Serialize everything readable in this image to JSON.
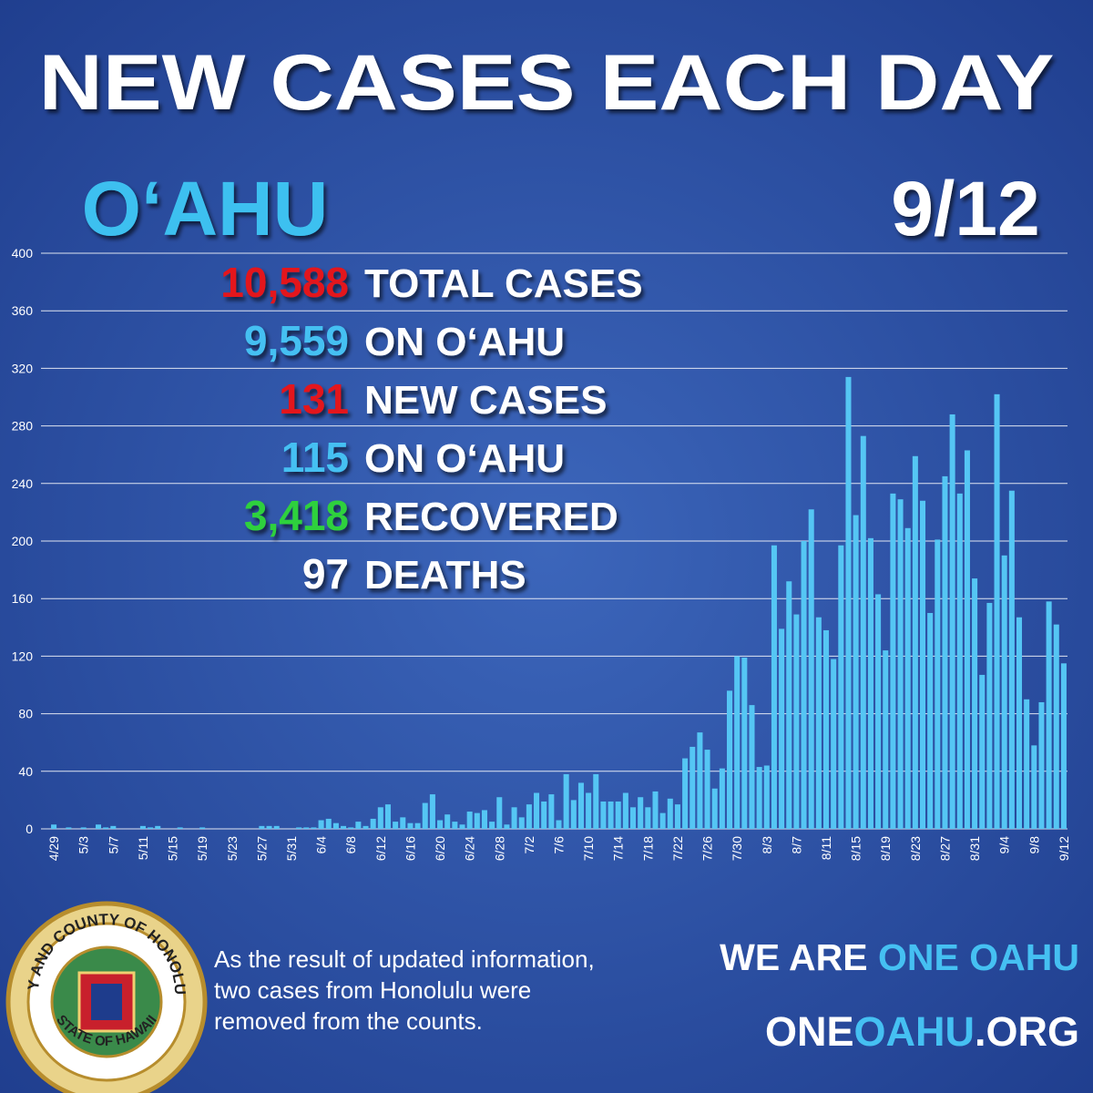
{
  "chart_data": {
    "type": "bar",
    "title": "NEW CASES EACH DAY",
    "categories": [
      "4/29",
      null,
      null,
      null,
      "5/3",
      null,
      null,
      null,
      "5/7",
      null,
      null,
      null,
      "5/11",
      null,
      null,
      null,
      "5/15",
      null,
      null,
      null,
      "5/19",
      null,
      null,
      null,
      "5/23",
      null,
      null,
      null,
      "5/27",
      null,
      null,
      null,
      "5/31",
      null,
      null,
      null,
      "6/4",
      null,
      null,
      null,
      "6/8",
      null,
      null,
      null,
      "6/12",
      null,
      null,
      null,
      "6/16",
      null,
      null,
      null,
      "6/20",
      null,
      null,
      null,
      "6/24",
      null,
      null,
      null,
      "6/28",
      null,
      null,
      null,
      "7/2",
      null,
      null,
      null,
      "7/6",
      null,
      null,
      null,
      "7/10",
      null,
      null,
      null,
      "7/14",
      null,
      null,
      null,
      "7/18",
      null,
      null,
      null,
      "7/22",
      null,
      null,
      null,
      "7/26",
      null,
      null,
      null,
      "7/30",
      null,
      null,
      null,
      "8/3",
      null,
      null,
      null,
      "8/7",
      null,
      null,
      null,
      "8/11",
      null,
      null,
      null,
      "8/15",
      null,
      null,
      null,
      "8/19",
      null,
      null,
      null,
      "8/23",
      null,
      null,
      null,
      "8/27",
      null,
      null,
      null,
      "8/31",
      null,
      null,
      null,
      "9/4",
      null,
      null,
      null,
      "9/8",
      null,
      null,
      null,
      "9/12"
    ],
    "values": [
      3,
      0,
      1,
      0,
      1,
      0,
      3,
      1,
      2,
      0,
      0,
      0,
      2,
      1,
      2,
      0,
      0,
      1,
      0,
      0,
      1,
      0,
      0,
      0,
      0,
      0,
      0,
      0,
      2,
      2,
      2,
      0,
      0,
      1,
      1,
      1,
      6,
      7,
      4,
      2,
      1,
      5,
      2,
      7,
      15,
      17,
      5,
      8,
      4,
      4,
      18,
      24,
      6,
      10,
      5,
      3,
      12,
      11,
      13,
      5,
      22,
      3,
      15,
      8,
      17,
      25,
      19,
      24,
      6,
      38,
      20,
      32,
      25,
      38,
      19,
      19,
      19,
      25,
      15,
      22,
      15,
      26,
      11,
      21,
      17,
      49,
      57,
      67,
      55,
      28,
      42,
      96,
      120,
      119,
      86,
      43,
      44,
      197,
      139,
      172,
      149,
      200,
      222,
      147,
      138,
      118,
      197,
      314,
      218,
      273,
      202,
      163,
      124,
      233,
      229,
      209,
      259,
      228,
      150,
      201,
      245,
      288,
      233,
      263,
      174,
      107,
      157,
      302,
      190,
      235,
      147,
      90,
      58,
      88,
      158,
      142,
      115
    ],
    "color": "#55c6f4",
    "ylim": [
      0,
      400
    ],
    "yticks": [
      0,
      40,
      80,
      120,
      160,
      200,
      240,
      280,
      320,
      360,
      400
    ],
    "grid": true
  },
  "region": "O‘AHU",
  "date": "9/12",
  "stats": [
    {
      "value": "10,588",
      "label": "TOTAL CASES",
      "color": "#e3141c"
    },
    {
      "value": "9,559",
      "label": "ON O‘AHU",
      "color": "#45c0f2"
    },
    {
      "value": "131",
      "label": "NEW CASES",
      "color": "#e3141c"
    },
    {
      "value": "115",
      "label": "ON O‘AHU",
      "color": "#45c0f2"
    },
    {
      "value": "3,418",
      "label": "RECOVERED",
      "color": "#2fd13c"
    },
    {
      "value": "97",
      "label": "DEATHS",
      "color": "#ffffff"
    }
  ],
  "note": [
    "As the result of updated information,",
    "two cases from Honolulu were",
    "removed from the counts."
  ],
  "slogan": {
    "white": "WE ARE",
    "blue": "ONE OAHU"
  },
  "site": {
    "a": "ONE",
    "b": "OAHU",
    "c": ".ORG"
  },
  "seal": {
    "top": "CITY AND COUNTY OF HONOLULU",
    "bottom": "STATE OF HAWAII"
  }
}
